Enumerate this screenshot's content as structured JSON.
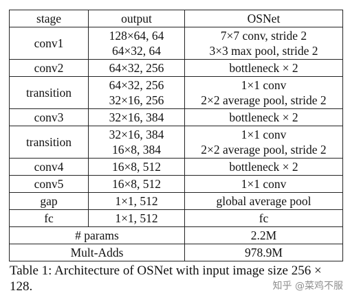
{
  "table": {
    "headers": {
      "stage": "stage",
      "output": "output",
      "osnet": "OSNet"
    },
    "rows": [
      {
        "stage": "conv1",
        "output": [
          "128×64, 64",
          "64×32, 64"
        ],
        "osnet": [
          "7×7 conv, stride 2",
          "3×3 max pool, stride 2"
        ]
      },
      {
        "stage": "conv2",
        "output": [
          "64×32, 256"
        ],
        "osnet": [
          "bottleneck × 2"
        ]
      },
      {
        "stage": "transition",
        "output": [
          "64×32, 256",
          "32×16, 256"
        ],
        "osnet": [
          "1×1 conv",
          "2×2 average pool, stride 2"
        ]
      },
      {
        "stage": "conv3",
        "output": [
          "32×16, 384"
        ],
        "osnet": [
          "bottleneck × 2"
        ]
      },
      {
        "stage": "transition",
        "output": [
          "32×16, 384",
          "16×8, 384"
        ],
        "osnet": [
          "1×1 conv",
          "2×2 average pool, stride 2"
        ]
      },
      {
        "stage": "conv4",
        "output": [
          "16×8, 512"
        ],
        "osnet": [
          "bottleneck × 2"
        ]
      },
      {
        "stage": "conv5",
        "output": [
          "16×8, 512"
        ],
        "osnet": [
          "1×1 conv"
        ]
      },
      {
        "stage": "gap",
        "output": [
          "1×1, 512"
        ],
        "osnet": [
          "global average pool"
        ]
      },
      {
        "stage": "fc",
        "output": [
          "1×1, 512"
        ],
        "osnet": [
          "fc"
        ]
      }
    ],
    "summary": [
      {
        "label": "# params",
        "value": "2.2M"
      },
      {
        "label": "Mult-Adds",
        "value": "978.9M"
      }
    ]
  },
  "caption": "Table 1: Architecture of OSNet with input image size 256 × 128.",
  "watermark": "知乎 @菜鸡不服"
}
